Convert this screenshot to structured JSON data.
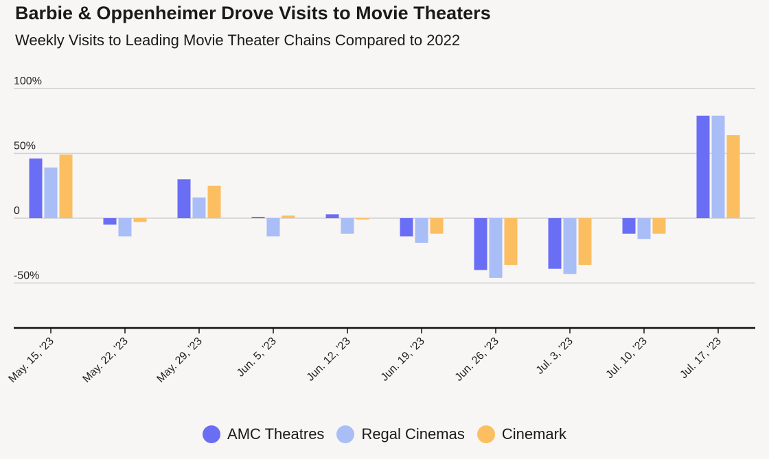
{
  "chart_data": {
    "type": "bar",
    "title": "Barbie & Oppenheimer Drove Visits to Movie Theaters",
    "subtitle": "Weekly Visits to Leading Movie Theater Chains Compared to 2022",
    "categories": [
      "May. 15, '23",
      "May. 22, '23",
      "May. 29, '23",
      "Jun. 5, '23",
      "Jun. 12, '23",
      "Jun. 19, '23",
      "Jun. 26, '23",
      "Jul. 3, '23",
      "Jul. 10, '23",
      "Jul. 17, '23"
    ],
    "series": [
      {
        "name": "AMC Theatres",
        "color": "#6a6ef5",
        "values": [
          46,
          -5,
          30,
          1,
          3,
          -14,
          -40,
          -39,
          -12,
          79
        ]
      },
      {
        "name": "Regal Cinemas",
        "color": "#a9bdf7",
        "values": [
          39,
          -14,
          16,
          -14,
          -12,
          -19,
          -46,
          -43,
          -16,
          79
        ]
      },
      {
        "name": "Cinemark",
        "color": "#fbbf61",
        "values": [
          49,
          -3,
          25,
          2,
          -1,
          -12,
          -36,
          -36,
          -12,
          64
        ]
      }
    ],
    "yticks": [
      {
        "value": 100,
        "label": "100%"
      },
      {
        "value": 50,
        "label": "50%"
      },
      {
        "value": 0,
        "label": "0"
      },
      {
        "value": -50,
        "label": "-50%"
      }
    ],
    "ylim": [
      -85,
      100
    ],
    "grid": true,
    "legend": "bottom"
  }
}
